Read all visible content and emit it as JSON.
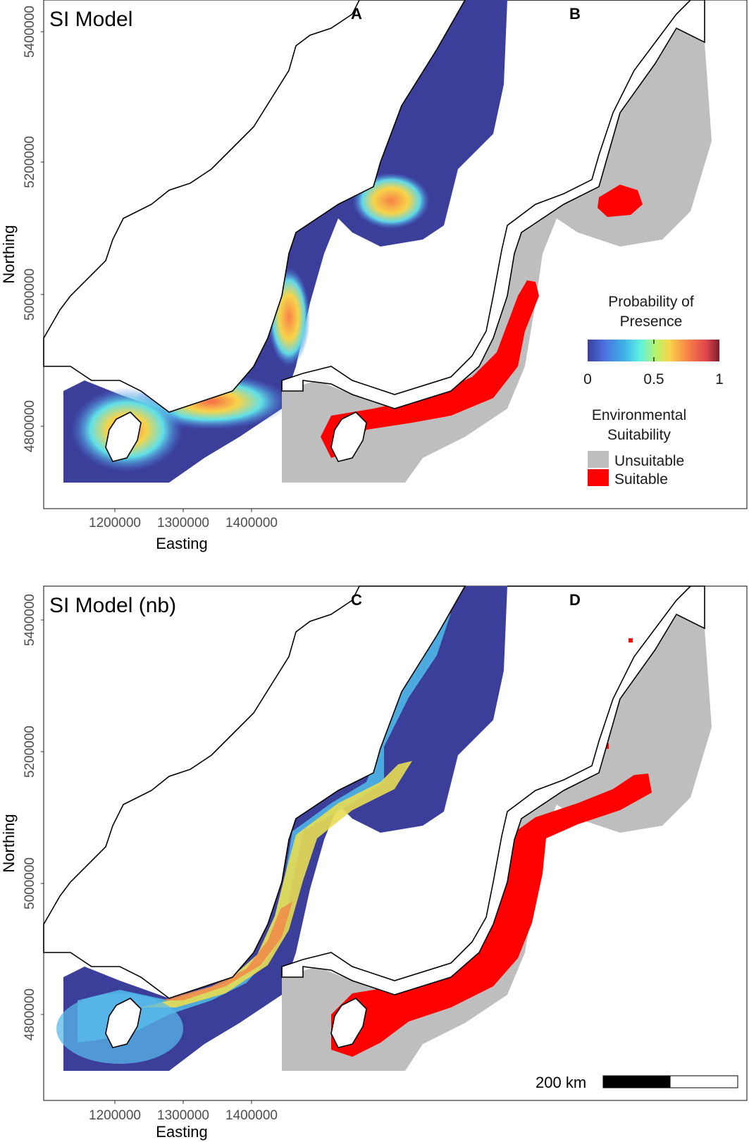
{
  "panels": [
    {
      "title": "SI Model",
      "letters": [
        "A",
        "B"
      ],
      "xlabel": "Easting",
      "ylabel": "Northing",
      "xticks": [
        "1200000",
        "1300000",
        "1400000"
      ],
      "yticks": [
        "5400000",
        "5200000",
        "5000000",
        "4800000"
      ]
    },
    {
      "title": "SI Model (nb)",
      "letters": [
        "C",
        "D"
      ],
      "xlabel": "Easting",
      "ylabel": "Northing",
      "xticks": [
        "1200000",
        "1300000",
        "1400000"
      ],
      "yticks": [
        "5400000",
        "5200000",
        "5000000",
        "4800000"
      ]
    }
  ],
  "legend": {
    "probability": {
      "title_line1": "Probability of",
      "title_line2": "Presence",
      "ticks": [
        "0",
        "0.5",
        "1"
      ],
      "colors": [
        "#3b3f9a",
        "#4a6fe0",
        "#3fb3e6",
        "#60f0e0",
        "#b9f26b",
        "#f7d44a",
        "#f78248",
        "#e0454d",
        "#7a1f2a"
      ]
    },
    "suitability": {
      "title_line1": "Environmental",
      "title_line2": "Suitability",
      "items": [
        {
          "label": "Unsuitable",
          "color": "#bebebe"
        },
        {
          "label": "Suitable",
          "color": "#ff0000"
        }
      ]
    }
  },
  "scalebar": {
    "label": "200 km"
  },
  "colors": {
    "ocean_low": "#3b3f9a",
    "unsuitable": "#bebebe",
    "suitable": "#ff0000",
    "coast": "#000000"
  }
}
